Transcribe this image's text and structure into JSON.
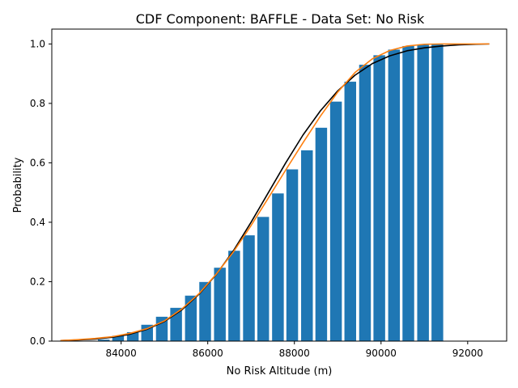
{
  "chart_data": {
    "type": "bar",
    "title": "CDF Component: BAFFLE - Data Set: No Risk",
    "xlabel": "No Risk Altitude (m)",
    "ylabel": "Probability",
    "xlim": [
      82400,
      92900
    ],
    "ylim": [
      0,
      1.05
    ],
    "xticks": [
      84000,
      86000,
      88000,
      90000,
      92000
    ],
    "yticks": [
      0.0,
      0.2,
      0.4,
      0.6,
      0.8,
      1.0
    ],
    "grid": false,
    "bar_color": "#1f77b4",
    "bar_width": 270,
    "bars": {
      "x": [
        83600,
        83930,
        84270,
        84600,
        84940,
        85270,
        85610,
        85940,
        86280,
        86610,
        86950,
        87280,
        87620,
        87950,
        88290,
        88620,
        88960,
        89290,
        89630,
        89960,
        90300,
        90630,
        90970,
        91300
      ],
      "values": [
        0.005,
        0.018,
        0.03,
        0.055,
        0.082,
        0.112,
        0.153,
        0.199,
        0.247,
        0.304,
        0.356,
        0.418,
        0.497,
        0.578,
        0.642,
        0.718,
        0.806,
        0.873,
        0.93,
        0.962,
        0.981,
        0.993,
        0.997,
        1.0
      ]
    },
    "lines": [
      {
        "color": "#000000",
        "x": [
          82600,
          83000,
          83400,
          83800,
          84200,
          84600,
          85000,
          85400,
          85800,
          86200,
          86600,
          87000,
          87400,
          87800,
          88200,
          88600,
          89000,
          89400,
          89800,
          90200,
          90600,
          91000,
          91400,
          91800,
          92200,
          92500
        ],
        "y": [
          0.002,
          0.004,
          0.007,
          0.013,
          0.023,
          0.04,
          0.066,
          0.105,
          0.158,
          0.225,
          0.306,
          0.4,
          0.5,
          0.6,
          0.694,
          0.775,
          0.842,
          0.895,
          0.934,
          0.96,
          0.977,
          0.987,
          0.993,
          0.997,
          0.999,
          1.0
        ]
      },
      {
        "color": "#ff7f0e",
        "x": [
          82600,
          83000,
          83400,
          83800,
          84200,
          84600,
          85000,
          85400,
          85800,
          86200,
          86600,
          87000,
          87400,
          87800,
          88200,
          88600,
          89000,
          89400,
          89800,
          90200,
          90600,
          91000,
          91400,
          91800,
          92200,
          92500
        ],
        "y": [
          0.002,
          0.005,
          0.009,
          0.015,
          0.026,
          0.042,
          0.068,
          0.108,
          0.16,
          0.226,
          0.302,
          0.389,
          0.482,
          0.576,
          0.668,
          0.757,
          0.838,
          0.904,
          0.95,
          0.978,
          0.993,
          0.999,
          1.0,
          1.0,
          1.0,
          1.0
        ]
      }
    ]
  }
}
